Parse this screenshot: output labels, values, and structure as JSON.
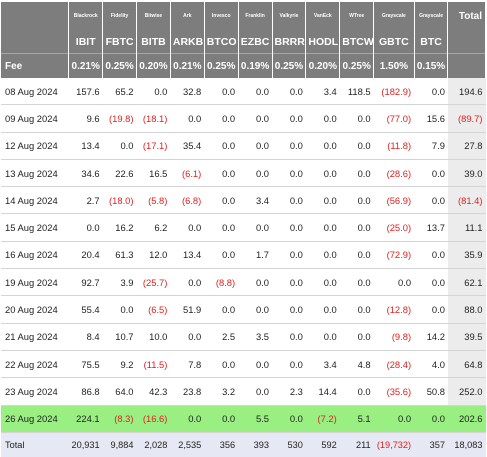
{
  "issuers": [
    "Blackrock",
    "Fidelity",
    "Bitwise",
    "Ark",
    "Invesco",
    "Franklin",
    "Valkyrie",
    "VanEck",
    "WTree",
    "Grayscale",
    "Grayscale"
  ],
  "total_label": "Total",
  "tickers": [
    "IBIT",
    "FBTC",
    "BITB",
    "ARKB",
    "BTCO",
    "EZBC",
    "BRRR",
    "HODL",
    "BTCW",
    "GBTC",
    "BTC"
  ],
  "fee_label": "Fee",
  "fees": [
    "0.21%",
    "0.25%",
    "0.20%",
    "0.21%",
    "0.25%",
    "0.19%",
    "0.25%",
    "0.20%",
    "0.25%",
    "1.50%",
    "0.15%"
  ],
  "rows": [
    {
      "date": "08 Aug 2024",
      "values": [
        "157.6",
        "65.2",
        "0.0",
        "32.8",
        "0.0",
        "0.0",
        "0.0",
        "3.4",
        "118.5",
        "(182.9)",
        "0.0"
      ],
      "total": "194.6",
      "highlight": false
    },
    {
      "date": "09 Aug 2024",
      "values": [
        "9.6",
        "(19.8)",
        "(18.1)",
        "0.0",
        "0.0",
        "0.0",
        "0.0",
        "0.0",
        "0.0",
        "(77.0)",
        "15.6"
      ],
      "total": "(89.7)",
      "highlight": false
    },
    {
      "date": "12 Aug 2024",
      "values": [
        "13.4",
        "0.0",
        "(17.1)",
        "35.4",
        "0.0",
        "0.0",
        "0.0",
        "0.0",
        "0.0",
        "(11.8)",
        "7.9"
      ],
      "total": "27.8",
      "highlight": false
    },
    {
      "date": "13 Aug 2024",
      "values": [
        "34.6",
        "22.6",
        "16.5",
        "(6.1)",
        "0.0",
        "0.0",
        "0.0",
        "0.0",
        "0.0",
        "(28.6)",
        "0.0"
      ],
      "total": "39.0",
      "highlight": false
    },
    {
      "date": "14 Aug 2024",
      "values": [
        "2.7",
        "(18.0)",
        "(5.8)",
        "(6.8)",
        "0.0",
        "3.4",
        "0.0",
        "0.0",
        "0.0",
        "(56.9)",
        "0.0"
      ],
      "total": "(81.4)",
      "highlight": false
    },
    {
      "date": "15 Aug 2024",
      "values": [
        "0.0",
        "16.2",
        "6.2",
        "0.0",
        "0.0",
        "0.0",
        "0.0",
        "0.0",
        "0.0",
        "(25.0)",
        "13.7"
      ],
      "total": "11.1",
      "highlight": false
    },
    {
      "date": "16 Aug 2024",
      "values": [
        "20.4",
        "61.3",
        "12.0",
        "13.4",
        "0.0",
        "1.7",
        "0.0",
        "0.0",
        "0.0",
        "(72.9)",
        "0.0"
      ],
      "total": "35.9",
      "highlight": false
    },
    {
      "date": "19 Aug 2024",
      "values": [
        "92.7",
        "3.9",
        "(25.7)",
        "0.0",
        "(8.8)",
        "0.0",
        "0.0",
        "0.0",
        "0.0",
        "0.0",
        "0.0"
      ],
      "total": "62.1",
      "highlight": false
    },
    {
      "date": "20 Aug 2024",
      "values": [
        "55.4",
        "0.0",
        "(6.5)",
        "51.9",
        "0.0",
        "0.0",
        "0.0",
        "0.0",
        "0.0",
        "(12.8)",
        "0.0"
      ],
      "total": "88.0",
      "highlight": false
    },
    {
      "date": "21 Aug 2024",
      "values": [
        "8.4",
        "10.7",
        "10.0",
        "0.0",
        "2.5",
        "3.5",
        "0.0",
        "0.0",
        "0.0",
        "(9.8)",
        "14.2"
      ],
      "total": "39.5",
      "highlight": false
    },
    {
      "date": "22 Aug 2024",
      "values": [
        "75.5",
        "9.2",
        "(11.5)",
        "7.8",
        "0.0",
        "0.0",
        "0.0",
        "3.4",
        "4.8",
        "(28.4)",
        "4.0"
      ],
      "total": "64.8",
      "highlight": false
    },
    {
      "date": "23 Aug 2024",
      "values": [
        "86.8",
        "64.0",
        "42.3",
        "23.8",
        "3.2",
        "0.0",
        "2.3",
        "14.4",
        "0.0",
        "(35.6)",
        "50.8"
      ],
      "total": "252.0",
      "highlight": false
    },
    {
      "date": "26 Aug 2024",
      "values": [
        "224.1",
        "(8.3)",
        "(16.6)",
        "0.0",
        "0.0",
        "5.5",
        "0.0",
        "(7.2)",
        "5.1",
        "0.0",
        "0.0"
      ],
      "total": "202.6",
      "highlight": true
    }
  ],
  "total_row": {
    "label": "Total",
    "values": [
      "20,931",
      "9,884",
      "2,028",
      "2,535",
      "356",
      "393",
      "530",
      "592",
      "211",
      "(19,732)",
      "357"
    ],
    "total": "18,083"
  },
  "colors": {
    "header_bg": "#7d7d7d",
    "negative": "#e02020",
    "highlight_row": "#99ef82",
    "total_row_bg": "#e6e9f4",
    "total_col_bg": "#ececec"
  }
}
